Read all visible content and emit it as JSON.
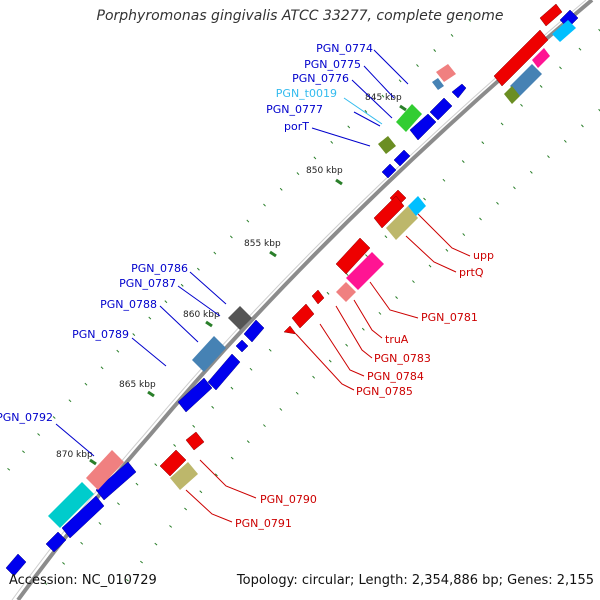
{
  "title": "Porphyromonas gingivalis ATCC 33277, complete genome",
  "footer": {
    "accession": "Accession: NC_010729",
    "summary": "Topology: circular; Length: 2,354,886 bp; Genes: 2,155"
  },
  "colors": {
    "backbone": "#808080",
    "forward_cds": "#0000ee",
    "reverse_cds": "#ee0000",
    "label_blue": "#0000cc",
    "label_red": "#cc0000",
    "label_trna": "#33bbee",
    "tick": "#2a7f2a"
  },
  "ticks": [
    "845 kbp",
    "850 kbp",
    "855 kbp",
    "860 kbp",
    "865 kbp",
    "870 kbp"
  ],
  "labels_left": [
    "PGN_0774",
    "PGN_0775",
    "PGN_0776",
    "PGN_t0019",
    "PGN_0777",
    "porT",
    "PGN_0786",
    "PGN_0787",
    "PGN_0788",
    "PGN_0789",
    "PGN_0792"
  ],
  "labels_right": [
    "upp",
    "prtQ",
    "PGN_0781",
    "truA",
    "PGN_0783",
    "PGN_0784",
    "PGN_0785",
    "PGN_0790",
    "PGN_0791"
  ]
}
